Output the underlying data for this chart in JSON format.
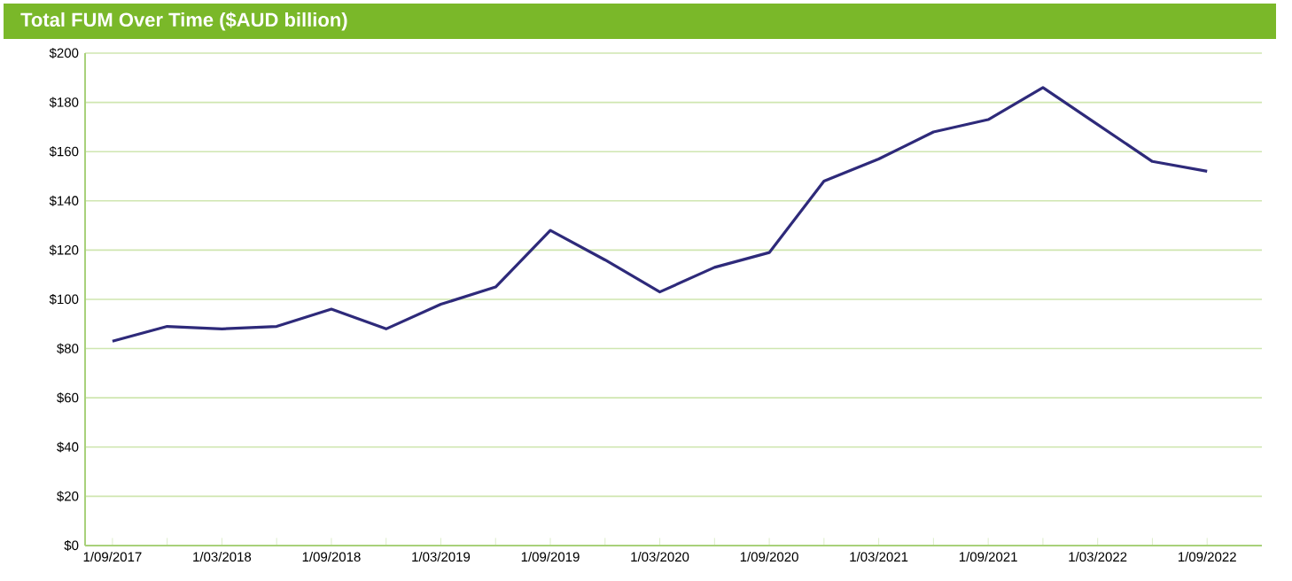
{
  "chart_data": {
    "type": "line",
    "title": "Total FUM Over Time ($AUD billion)",
    "categories": [
      "1/09/2017",
      null,
      "1/03/2018",
      null,
      "1/09/2018",
      null,
      "1/03/2019",
      null,
      "1/09/2019",
      null,
      "1/03/2020",
      null,
      "1/09/2020",
      null,
      "1/03/2021",
      null,
      "1/09/2021",
      null,
      "1/03/2022",
      null,
      "1/09/2022"
    ],
    "series": [
      {
        "color": "#2e2a7a",
        "values": [
          83,
          89,
          88,
          89,
          96,
          88,
          98,
          105,
          128,
          116,
          103,
          113,
          119,
          148,
          157,
          168,
          173,
          186,
          171,
          156,
          152
        ]
      }
    ],
    "ylim": [
      0,
      200
    ],
    "yticks": [
      {
        "value": 0,
        "label": "$0"
      },
      {
        "value": 20,
        "label": "$20"
      },
      {
        "value": 40,
        "label": "$40"
      },
      {
        "value": 60,
        "label": "$60"
      },
      {
        "value": 80,
        "label": "$80"
      },
      {
        "value": 100,
        "label": "$100"
      },
      {
        "value": 120,
        "label": "$120"
      },
      {
        "value": 140,
        "label": "$140"
      },
      {
        "value": 160,
        "label": "$160"
      },
      {
        "value": 180,
        "label": "$180"
      },
      {
        "value": 200,
        "label": "$200"
      }
    ],
    "grid": "y",
    "marker": "none",
    "line_style": "solid"
  }
}
